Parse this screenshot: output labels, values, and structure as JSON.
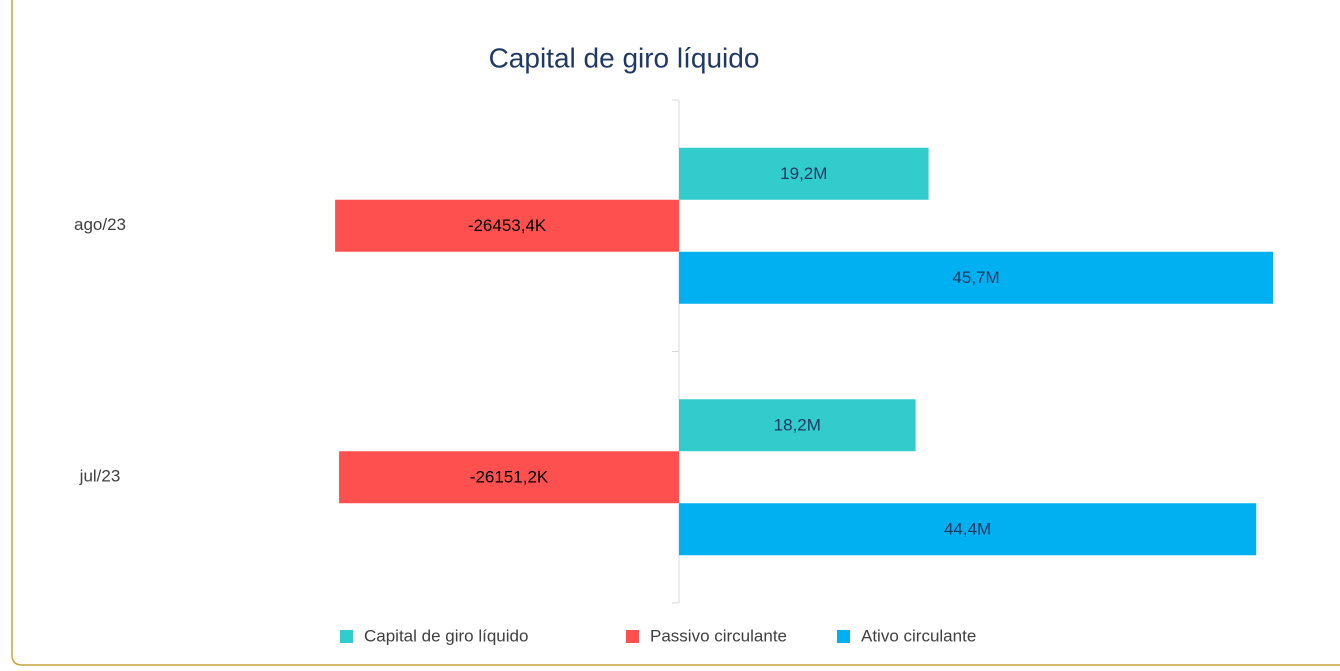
{
  "chart_data": {
    "type": "hbar",
    "title": "Capital de giro líquido",
    "categories": [
      "ago/23",
      "jul/23"
    ],
    "series": [
      {
        "name": "Capital de giro líquido",
        "color": "#33CCCC",
        "values": [
          19200000,
          18200000
        ],
        "value_labels": [
          "19,2M",
          "18,2M"
        ]
      },
      {
        "name": "Passivo circulante",
        "color": "#FF5050",
        "values": [
          -26453400,
          -26151200
        ],
        "value_labels": [
          "-26453,4K",
          "-26151,2K"
        ]
      },
      {
        "name": "Ativo circulante",
        "color": "#00B0F0",
        "values": [
          45700000,
          44400000
        ],
        "value_labels": [
          "45,7M",
          "44,4M"
        ]
      }
    ],
    "xlim": [
      -27000000,
      46000000
    ],
    "legend": "bottom"
  }
}
